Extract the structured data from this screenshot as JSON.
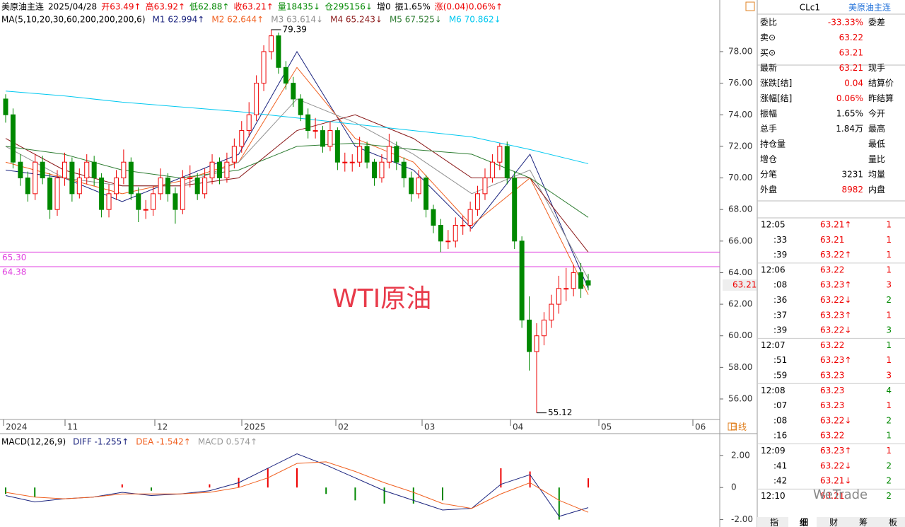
{
  "header": {
    "items": [
      {
        "text": "美原油主连",
        "color": "#000"
      },
      {
        "text": "2025/04/28",
        "color": "#000"
      },
      {
        "text": "开63.49↑",
        "color": "#e00"
      },
      {
        "text": "高63.92↑",
        "color": "#e00"
      },
      {
        "text": "低62.88↑",
        "color": "#080"
      },
      {
        "text": "收63.21↑",
        "color": "#e00"
      },
      {
        "text": "量18435↓",
        "color": "#080"
      },
      {
        "text": "仓295156↓",
        "color": "#080"
      },
      {
        "text": "增0",
        "color": "#000"
      },
      {
        "text": "振1.65%",
        "color": "#000"
      },
      {
        "text": "涨(0.04)0.06%↑",
        "color": "#e00"
      }
    ],
    "ma_title": "MA(5,10,20,30,60,200,200,200,6)"
  },
  "chart_data": {
    "type": "candlestick",
    "watermark": "WTI原油",
    "ylim": [
      54.7,
      81.27
    ],
    "yticks": [
      {
        "value": 56,
        "label": "56.00"
      },
      {
        "value": 58,
        "label": "58.00"
      },
      {
        "value": 60,
        "label": "60.00"
      },
      {
        "value": 62,
        "label": "62.00"
      },
      {
        "value": 64,
        "label": "64.00"
      },
      {
        "value": 66,
        "label": "66.00"
      },
      {
        "value": 68,
        "label": "68.00"
      },
      {
        "value": 70,
        "label": "70.00"
      },
      {
        "value": 72,
        "label": "72.00"
      },
      {
        "value": 74,
        "label": "74.00"
      },
      {
        "value": 76,
        "label": "76.00"
      },
      {
        "value": 78,
        "label": "78.00"
      }
    ],
    "x_labels": [
      "2024",
      "11",
      "12",
      "2025",
      "02",
      "03",
      "04",
      "05",
      "06"
    ],
    "period": "日线",
    "up_color": "#e00",
    "down_color": "#080",
    "candles": [
      [
        75,
        75.3,
        73.5,
        74
      ],
      [
        74,
        74.4,
        70.6,
        71
      ],
      [
        71,
        71.5,
        69.5,
        70
      ],
      [
        70,
        70.4,
        68.5,
        69
      ],
      [
        69,
        71.5,
        68.6,
        71
      ],
      [
        71,
        71.4,
        69.6,
        70
      ],
      [
        70,
        70.3,
        67.4,
        68
      ],
      [
        68,
        70.5,
        67.6,
        70
      ],
      [
        70,
        71.6,
        69.5,
        71
      ],
      [
        71,
        71.3,
        68.5,
        69
      ],
      [
        69,
        70.6,
        68.7,
        70
      ],
      [
        70,
        71.5,
        69.6,
        71
      ],
      [
        71,
        71.4,
        69.5,
        70
      ],
      [
        70,
        70.3,
        67.5,
        68
      ],
      [
        68,
        69.6,
        67.5,
        69
      ],
      [
        69,
        70.5,
        68.6,
        70
      ],
      [
        70,
        71.8,
        69.6,
        71
      ],
      [
        71,
        71.3,
        68.6,
        69
      ],
      [
        69,
        69.4,
        67.2,
        68
      ],
      [
        68,
        68.6,
        67.4,
        68
      ],
      [
        68,
        69.5,
        67.6,
        69
      ],
      [
        69,
        70.6,
        68.6,
        70
      ],
      [
        70,
        70.3,
        68.5,
        69
      ],
      [
        69,
        69.4,
        67.1,
        68
      ],
      [
        68,
        70.5,
        67.7,
        70
      ],
      [
        70,
        70.8,
        69.4,
        70
      ],
      [
        70,
        70.3,
        68.6,
        69
      ],
      [
        69,
        70.6,
        68.7,
        70
      ],
      [
        70,
        71.5,
        69.6,
        71
      ],
      [
        71,
        71.3,
        69.6,
        70
      ],
      [
        70,
        71.6,
        69.7,
        71
      ],
      [
        71,
        72.5,
        70.6,
        72
      ],
      [
        72,
        73.6,
        71.6,
        73
      ],
      [
        73,
        74.8,
        72.6,
        74
      ],
      [
        74,
        76.5,
        73.6,
        76
      ],
      [
        76,
        78.4,
        75.5,
        78
      ],
      [
        78,
        79.39,
        77.5,
        79
      ],
      [
        79,
        79.2,
        76.6,
        77
      ],
      [
        77,
        77.4,
        75.6,
        76
      ],
      [
        76,
        76.4,
        74.5,
        75
      ],
      [
        75,
        75.3,
        73.6,
        74
      ],
      [
        74,
        74.4,
        72.5,
        73
      ],
      [
        73,
        73.8,
        72.5,
        73
      ],
      [
        73,
        73.3,
        71.6,
        72
      ],
      [
        72,
        73.6,
        71.7,
        73
      ],
      [
        73,
        73.2,
        70.5,
        71
      ],
      [
        71,
        71.6,
        70.4,
        71
      ],
      [
        71,
        71.5,
        70.4,
        71
      ],
      [
        71,
        72.6,
        70.7,
        72
      ],
      [
        72,
        72.3,
        70.6,
        71
      ],
      [
        71,
        71.2,
        69.5,
        70
      ],
      [
        70,
        71.5,
        69.7,
        71
      ],
      [
        71,
        72.8,
        70.6,
        72
      ],
      [
        72,
        72.3,
        70.5,
        71
      ],
      [
        71,
        71.3,
        69.4,
        70
      ],
      [
        70,
        70.4,
        68.5,
        69
      ],
      [
        69,
        70.5,
        68.7,
        70
      ],
      [
        70,
        70.2,
        67.5,
        68
      ],
      [
        68,
        68.3,
        66.5,
        67
      ],
      [
        67,
        67.4,
        65.3,
        66
      ],
      [
        66,
        66.7,
        65.5,
        66
      ],
      [
        66,
        67.5,
        65.6,
        67
      ],
      [
        67,
        67.6,
        66.4,
        67
      ],
      [
        67,
        68.5,
        66.6,
        68
      ],
      [
        68,
        69.5,
        67.6,
        69
      ],
      [
        69,
        70.6,
        68.6,
        70
      ],
      [
        70,
        71.5,
        69.7,
        71
      ],
      [
        71,
        72.2,
        70.5,
        72
      ],
      [
        72,
        72.3,
        69.6,
        70
      ],
      [
        70,
        70.4,
        65.5,
        66
      ],
      [
        66,
        66.3,
        60.5,
        61
      ],
      [
        61,
        62.5,
        57.8,
        59
      ],
      [
        59,
        60.8,
        55.12,
        60
      ],
      [
        60,
        61.5,
        59.4,
        61
      ],
      [
        61,
        62.6,
        60.5,
        62
      ],
      [
        62,
        63.8,
        61.4,
        63
      ],
      [
        63,
        64.3,
        62.2,
        63
      ],
      [
        63,
        64.5,
        62.5,
        64
      ],
      [
        64,
        64.6,
        62.4,
        63
      ],
      [
        63.49,
        63.92,
        62.88,
        63.21
      ]
    ],
    "high_label": 79.39,
    "low_label": 55.12,
    "hlines": [
      {
        "value": 65.3,
        "label": "65.30"
      },
      {
        "value": 64.38,
        "label": "64.38"
      }
    ],
    "hline_color": "#e040e0",
    "last_price": 63.21,
    "ma_lines": [
      {
        "label": "M1",
        "text": "M1 62.994↑",
        "color": "#1a237e",
        "points": [
          70.5,
          70,
          68.5,
          70,
          71.5,
          78,
          72,
          70.5,
          66.8,
          71.5,
          63
        ]
      },
      {
        "label": "M2",
        "text": "M2 62.644↑",
        "color": "#f06020",
        "points": [
          71,
          70,
          69,
          69.8,
          71,
          77,
          72.5,
          71,
          67,
          70,
          62.6
        ]
      },
      {
        "label": "M3",
        "text": "M3 63.614↓",
        "color": "#909090",
        "points": [
          72,
          70,
          69.5,
          69.5,
          71,
          75,
          73.5,
          71.5,
          69,
          70.5,
          63.6
        ]
      },
      {
        "label": "M4",
        "text": "M4 65.243↓",
        "color": "#8b1a1a",
        "points": [
          72.5,
          70.5,
          69.5,
          69.5,
          70,
          73,
          74,
          72.5,
          70,
          70,
          65.3
        ]
      },
      {
        "label": "M5",
        "text": "M5 67.525↓",
        "color": "#2e7d32",
        "points": [
          72,
          71.5,
          70.5,
          70,
          70.5,
          72,
          72.2,
          71.8,
          71.5,
          70,
          67.5
        ]
      },
      {
        "label": "M6",
        "text": "M6 70.862↓",
        "color": "#00c8f0",
        "points": [
          75.5,
          75.2,
          74.8,
          74.5,
          74.2,
          73.8,
          73.4,
          73,
          72.6,
          71.8,
          70.9
        ]
      }
    ]
  },
  "macd": {
    "title": "MACD(12,26,9)",
    "diff_text": "DIFF -1.255↑",
    "dea_text": "DEA -1.542↑",
    "macd_text": "MACD 0.574↑",
    "ylim": [
      -2.46,
      3.27
    ],
    "yticks": [
      {
        "value": 2,
        "label": "2.00"
      },
      0,
      {
        "value": -2,
        "label": "-2.00"
      }
    ],
    "diff": [
      -0.5,
      -0.9,
      -0.7,
      -0.6,
      -0.3,
      -0.5,
      -0.4,
      -0.2,
      0.3,
      1.2,
      2.1,
      1.4,
      0.6,
      -0.2,
      -0.8,
      -1.4,
      -1.3,
      0.2,
      0.8,
      -1.8,
      -1.255
    ],
    "dea": [
      -0.3,
      -0.6,
      -0.7,
      -0.6,
      -0.4,
      -0.4,
      -0.4,
      -0.3,
      0,
      0.6,
      1.5,
      1.6,
      1,
      0.3,
      -0.3,
      -1,
      -1.3,
      -0.4,
      0.3,
      -0.8,
      -1.542
    ],
    "values": [
      -0.4,
      -0.6,
      0,
      0,
      0.2,
      -0.2,
      0,
      0.2,
      0.6,
      1.2,
      1.2,
      -0.4,
      -0.8,
      -1,
      -1,
      -0.8,
      0,
      1.2,
      1,
      -2,
      0.574
    ]
  },
  "quote": {
    "code": "CLc1",
    "name": "美原油主连",
    "rows": [
      {
        "label": "委比",
        "value": "-33.33%",
        "color": "#e00",
        "label2": "委差"
      },
      {
        "label": "卖⊙",
        "value": "63.22",
        "color": "#e00"
      },
      {
        "label": "买⊙",
        "value": "63.21",
        "color": "#e00"
      },
      {
        "label": "最新",
        "value": "63.21",
        "color": "#e00",
        "label2": "现手"
      },
      {
        "label": "涨跌[结]",
        "value": "0.04",
        "color": "#e00",
        "label2": "结算价"
      },
      {
        "label": "涨幅[结]",
        "value": "0.06%",
        "color": "#e00",
        "label2": "昨结算"
      },
      {
        "label": "振幅",
        "value": "1.65%",
        "color": "#000",
        "label2": "今开"
      },
      {
        "label": "总手",
        "value": "1.84万",
        "color": "#000",
        "label2": "最高"
      },
      {
        "label": "持仓量",
        "label2": "最低"
      },
      {
        "label": "增仓",
        "label2": "量比"
      },
      {
        "label": "分笔",
        "value": "3231",
        "color": "#000",
        "label2": "均量"
      },
      {
        "label": "外盘",
        "value": "8982",
        "color": "#e00",
        "label2": "内盘"
      }
    ]
  },
  "ticks": [
    {
      "time": "12:05",
      "price": "63.21↑",
      "vol": 1,
      "color": "#e00"
    },
    {
      "time": ":33",
      "price": "63.21",
      "vol": 1,
      "color": "#e00"
    },
    {
      "time": ":39",
      "price": "63.22↑",
      "vol": 1,
      "color": "#e00"
    },
    {
      "time": "12:06",
      "price": "63.22",
      "vol": 1,
      "color": "#e00"
    },
    {
      "time": ":08",
      "price": "63.23↑",
      "vol": 3,
      "color": "#e00"
    },
    {
      "time": ":36",
      "price": "63.22↓",
      "vol": 2,
      "color": "#080"
    },
    {
      "time": ":37",
      "price": "63.23↑",
      "vol": 1,
      "color": "#e00"
    },
    {
      "time": ":39",
      "price": "63.22↓",
      "vol": 3,
      "color": "#080"
    },
    {
      "time": "12:07",
      "price": "63.22",
      "vol": 1,
      "color": "#080"
    },
    {
      "time": ":51",
      "price": "63.23↑",
      "vol": 1,
      "color": "#e00"
    },
    {
      "time": ":59",
      "price": "63.23",
      "vol": 3,
      "color": "#e00"
    },
    {
      "time": "12:08",
      "price": "63.23",
      "vol": 4,
      "color": "#080"
    },
    {
      "time": ":07",
      "price": "63.23",
      "vol": 1,
      "color": "#e00"
    },
    {
      "time": ":08",
      "price": "63.22↓",
      "vol": 2,
      "color": "#080"
    },
    {
      "time": ":16",
      "price": "63.22",
      "vol": 1,
      "color": "#080"
    },
    {
      "time": "12:09",
      "price": "63.23↑",
      "vol": 1,
      "color": "#e00"
    },
    {
      "time": ":41",
      "price": "63.22↓",
      "vol": 2,
      "color": "#080"
    },
    {
      "time": ":42",
      "price": "63.21↓",
      "vol": 2,
      "color": "#080"
    },
    {
      "time": "12:10",
      "price": "63.21",
      "vol": 2,
      "color": "#080"
    }
  ],
  "tabs": [
    "指",
    "细",
    "财",
    "筹",
    "板"
  ],
  "active_tab": "细",
  "brand": "WeTrade"
}
